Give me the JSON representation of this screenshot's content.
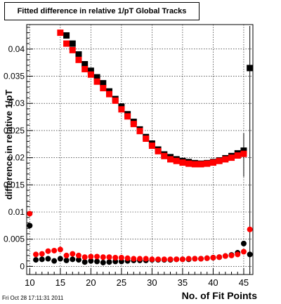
{
  "chart_data": {
    "type": "scatter",
    "title": "Fitted difference in relative 1/pT  Global Tracks",
    "xlabel": "No. of Fit Points",
    "ylabel": "difference in relative 1/pT",
    "xlim": [
      9.5,
      46.5
    ],
    "ylim": [
      -0.0015,
      0.0445
    ],
    "x_ticks": [
      10,
      15,
      20,
      25,
      30,
      35,
      40,
      45
    ],
    "y_ticks": [
      {
        "value": 0,
        "label": "0"
      },
      {
        "value": 0.005,
        "label": "0.005"
      },
      {
        "value": 0.01,
        "label": "0.01"
      },
      {
        "value": 0.015,
        "label": "0.015"
      },
      {
        "value": 0.02,
        "label": "0.02"
      },
      {
        "value": 0.025,
        "label": "0.025"
      },
      {
        "value": 0.03,
        "label": "0.03"
      },
      {
        "value": 0.035,
        "label": "0.035"
      },
      {
        "value": 0.04,
        "label": "0.04"
      }
    ],
    "grid": true,
    "series": [
      {
        "marker": "square",
        "color": "#000000",
        "x": [
          16,
          17,
          18,
          19,
          20,
          21,
          22,
          23,
          24,
          25,
          26,
          27,
          28,
          29,
          30,
          31,
          32,
          33,
          34,
          35,
          36,
          37,
          38,
          39,
          40,
          41,
          42,
          43,
          44,
          45,
          46
        ],
        "y": [
          0.0425,
          0.041,
          0.039,
          0.0372,
          0.036,
          0.0348,
          0.0337,
          0.0322,
          0.0308,
          0.0294,
          0.028,
          0.0266,
          0.0252,
          0.0238,
          0.0226,
          0.0215,
          0.0206,
          0.0201,
          0.0197,
          0.0194,
          0.0192,
          0.019,
          0.0189,
          0.019,
          0.0192,
          0.0195,
          0.0199,
          0.0203,
          0.0208,
          0.0213,
          0.0365
        ]
      },
      {
        "marker": "square",
        "color": "#ff0000",
        "x": [
          15,
          16,
          17,
          18,
          19,
          20,
          21,
          22,
          23,
          24,
          25,
          26,
          27,
          28,
          29,
          30,
          31,
          32,
          33,
          34,
          35,
          36,
          37,
          38,
          39,
          40,
          41,
          42,
          43,
          44,
          45
        ],
        "y": [
          0.043,
          0.041,
          0.0398,
          0.038,
          0.0363,
          0.0353,
          0.034,
          0.0328,
          0.0317,
          0.0305,
          0.0289,
          0.0276,
          0.0262,
          0.0249,
          0.0235,
          0.0222,
          0.0212,
          0.0203,
          0.0197,
          0.0194,
          0.0191,
          0.0189,
          0.0188,
          0.0188,
          0.0189,
          0.0191,
          0.0194,
          0.0197,
          0.02,
          0.0204,
          0.0207
        ]
      },
      {
        "marker": "circle",
        "color": "#000000",
        "x": [
          10,
          11,
          12,
          13,
          14,
          15,
          16,
          17,
          18,
          19,
          20,
          21,
          22,
          23,
          24,
          25,
          26,
          27,
          28,
          29,
          30,
          31,
          32,
          33,
          34,
          35,
          36,
          37,
          38,
          39,
          40,
          41,
          42,
          43,
          44,
          45,
          46
        ],
        "y": [
          0.0075,
          0.0012,
          0.0013,
          0.0014,
          0.001,
          0.0014,
          0.0011,
          0.0013,
          0.0012,
          0.0008,
          0.001,
          0.0009,
          0.0007,
          0.0008,
          0.0009,
          0.0009,
          0.001,
          0.0011,
          0.0011,
          0.0011,
          0.0012,
          0.0012,
          0.0012,
          0.0012,
          0.0013,
          0.0013,
          0.0013,
          0.0014,
          0.0014,
          0.0015,
          0.0016,
          0.0017,
          0.0019,
          0.0021,
          0.0025,
          0.0042,
          0.0022
        ]
      },
      {
        "marker": "circle",
        "color": "#ff0000",
        "x": [
          10,
          11,
          12,
          13,
          14,
          15,
          16,
          17,
          18,
          19,
          20,
          21,
          22,
          23,
          24,
          25,
          26,
          27,
          28,
          29,
          30,
          31,
          32,
          33,
          34,
          35,
          36,
          37,
          38,
          39,
          40,
          41,
          42,
          43,
          44,
          45,
          46
        ],
        "y": [
          0.0097,
          0.0022,
          0.0023,
          0.0028,
          0.0029,
          0.0031,
          0.002,
          0.0023,
          0.002,
          0.0017,
          0.0018,
          0.0018,
          0.0017,
          0.0017,
          0.0016,
          0.0016,
          0.0015,
          0.0014,
          0.0014,
          0.0014,
          0.0013,
          0.0013,
          0.0013,
          0.0013,
          0.0013,
          0.0013,
          0.0014,
          0.0014,
          0.0014,
          0.0015,
          0.0016,
          0.0017,
          0.0019,
          0.002,
          0.0022,
          0.0027,
          0.0068
        ]
      }
    ],
    "timestamp": "Fri Oct 28 17:11:31 2011"
  }
}
